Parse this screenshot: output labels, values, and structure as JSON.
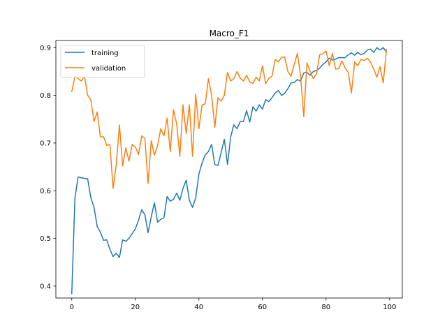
{
  "chart_data": {
    "type": "line",
    "title": "Macro_F1",
    "xlabel": "",
    "ylabel": "",
    "xlim": [
      -5,
      104
    ],
    "ylim": [
      0.375,
      0.915
    ],
    "x_ticks": [
      0,
      20,
      40,
      60,
      80,
      100
    ],
    "y_ticks": [
      0.4,
      0.5,
      0.6,
      0.7,
      0.8,
      0.9
    ],
    "x_tick_labels": [
      "0",
      "20",
      "40",
      "60",
      "80",
      "100"
    ],
    "y_tick_labels": [
      "0.4",
      "0.5",
      "0.6",
      "0.7",
      "0.8",
      "0.9"
    ],
    "grid": false,
    "legend_position": "top-left",
    "x": [
      0,
      1,
      2,
      3,
      4,
      5,
      6,
      7,
      8,
      9,
      10,
      11,
      12,
      13,
      14,
      15,
      16,
      17,
      18,
      19,
      20,
      21,
      22,
      23,
      24,
      25,
      26,
      27,
      28,
      29,
      30,
      31,
      32,
      33,
      34,
      35,
      36,
      37,
      38,
      39,
      40,
      41,
      42,
      43,
      44,
      45,
      46,
      47,
      48,
      49,
      50,
      51,
      52,
      53,
      54,
      55,
      56,
      57,
      58,
      59,
      60,
      61,
      62,
      63,
      64,
      65,
      66,
      67,
      68,
      69,
      70,
      71,
      72,
      73,
      74,
      75,
      76,
      77,
      78,
      79,
      80,
      81,
      82,
      83,
      84,
      85,
      86,
      87,
      88,
      89,
      90,
      91,
      92,
      93,
      94,
      95,
      96,
      97,
      98,
      99
    ],
    "series": [
      {
        "name": "training",
        "color": "#1f77b4",
        "values": [
          0.384,
          0.585,
          0.629,
          0.627,
          0.626,
          0.625,
          0.585,
          0.565,
          0.525,
          0.513,
          0.496,
          0.497,
          0.477,
          0.462,
          0.469,
          0.46,
          0.497,
          0.494,
          0.5,
          0.51,
          0.52,
          0.538,
          0.56,
          0.55,
          0.512,
          0.545,
          0.575,
          0.534,
          0.54,
          0.543,
          0.588,
          0.578,
          0.582,
          0.595,
          0.58,
          0.605,
          0.622,
          0.58,
          0.565,
          0.585,
          0.635,
          0.658,
          0.675,
          0.682,
          0.697,
          0.655,
          0.653,
          0.68,
          0.708,
          0.655,
          0.713,
          0.738,
          0.73,
          0.745,
          0.745,
          0.768,
          0.744,
          0.776,
          0.767,
          0.78,
          0.771,
          0.791,
          0.787,
          0.795,
          0.805,
          0.81,
          0.8,
          0.804,
          0.814,
          0.826,
          0.827,
          0.833,
          0.83,
          0.847,
          0.848,
          0.842,
          0.85,
          0.852,
          0.857,
          0.865,
          0.87,
          0.878,
          0.874,
          0.876,
          0.879,
          0.879,
          0.879,
          0.885,
          0.889,
          0.884,
          0.89,
          0.885,
          0.888,
          0.895,
          0.897,
          0.89,
          0.9,
          0.895,
          0.9,
          0.891
        ]
      },
      {
        "name": "validation",
        "color": "#ff7f0e",
        "values": [
          0.808,
          0.84,
          0.835,
          0.83,
          0.84,
          0.8,
          0.79,
          0.745,
          0.765,
          0.713,
          0.713,
          0.695,
          0.697,
          0.605,
          0.655,
          0.738,
          0.652,
          0.69,
          0.662,
          0.697,
          0.692,
          0.676,
          0.715,
          0.71,
          0.615,
          0.705,
          0.675,
          0.695,
          0.73,
          0.715,
          0.752,
          0.682,
          0.77,
          0.74,
          0.672,
          0.78,
          0.72,
          0.78,
          0.672,
          0.802,
          0.73,
          0.78,
          0.782,
          0.835,
          0.8,
          0.733,
          0.795,
          0.788,
          0.8,
          0.848,
          0.83,
          0.835,
          0.85,
          0.836,
          0.83,
          0.842,
          0.828,
          0.825,
          0.838,
          0.83,
          0.862,
          0.824,
          0.836,
          0.84,
          0.875,
          0.87,
          0.88,
          0.88,
          0.85,
          0.84,
          0.865,
          0.888,
          0.84,
          0.755,
          0.868,
          0.85,
          0.835,
          0.845,
          0.885,
          0.887,
          0.893,
          0.862,
          0.888,
          0.855,
          0.856,
          0.872,
          0.858,
          0.848,
          0.805,
          0.87,
          0.862,
          0.875,
          0.873,
          0.878,
          0.87,
          0.855,
          0.838,
          0.86,
          0.826,
          0.896
        ]
      }
    ]
  }
}
